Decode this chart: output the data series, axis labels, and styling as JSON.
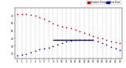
{
  "background_color": "#ffffff",
  "grid_color": "#aaaaaa",
  "temp_color": "#cc0000",
  "dew_color": "#0000cc",
  "legend_temp_label": "Outdoor Temp",
  "legend_dew_label": "Dew Point",
  "ylim": [
    14,
    80
  ],
  "xlim": [
    -0.5,
    23.5
  ],
  "ytick_labels": [
    "20",
    "30",
    "40",
    "50",
    "60",
    "70"
  ],
  "ytick_vals": [
    20,
    30,
    40,
    50,
    60,
    70
  ],
  "xtick_labels": [
    "0",
    "1",
    "2",
    "3",
    "4",
    "5",
    "6",
    "7",
    "8",
    "9",
    "10",
    "11",
    "12",
    "13",
    "14",
    "15",
    "16",
    "17",
    "18",
    "19",
    "20",
    "21",
    "22",
    "23"
  ],
  "xtick_vals": [
    0,
    1,
    2,
    3,
    4,
    5,
    6,
    7,
    8,
    9,
    10,
    11,
    12,
    13,
    14,
    15,
    16,
    17,
    18,
    19,
    20,
    21,
    22,
    23
  ],
  "temp_x": [
    0,
    1,
    2,
    3,
    4,
    5,
    6,
    7,
    8,
    9,
    10,
    11,
    12,
    13,
    14,
    15,
    16,
    17,
    18,
    19,
    20,
    21,
    22,
    23
  ],
  "temp_y": [
    72,
    72,
    72,
    71,
    70,
    68,
    66,
    63,
    60,
    58,
    56,
    55,
    54,
    52,
    50,
    48,
    46,
    44,
    42,
    40,
    38,
    36,
    35,
    34
  ],
  "dew_x": [
    0,
    1,
    2,
    3,
    4,
    5,
    6,
    7,
    8,
    9,
    10,
    11,
    12,
    13,
    14,
    15,
    16,
    17,
    18,
    19,
    20,
    21,
    22,
    23
  ],
  "dew_y": [
    18,
    19,
    20,
    22,
    24,
    26,
    27,
    28,
    30,
    32,
    34,
    36,
    37,
    38,
    38,
    38,
    38,
    38,
    36,
    34,
    32,
    29,
    27,
    25
  ],
  "dew_line_x": [
    8,
    17
  ],
  "dew_line_y": [
    38,
    38
  ],
  "marker_size": 1.5
}
